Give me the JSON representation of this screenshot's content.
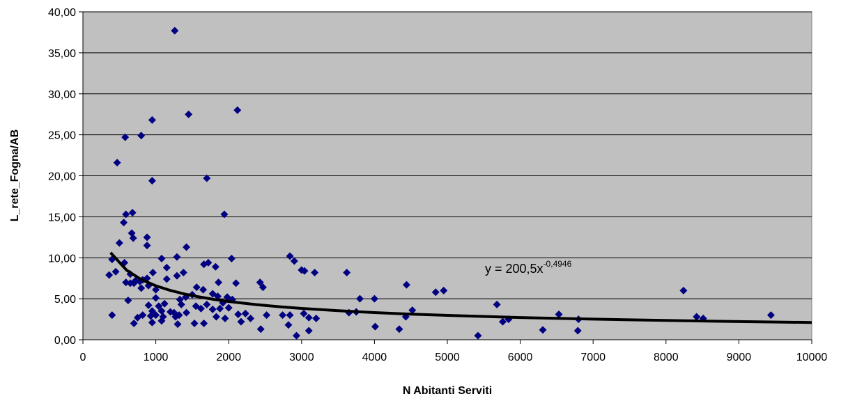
{
  "chart_data": {
    "type": "scatter",
    "xlabel": "N Abitanti Serviti",
    "ylabel": "L_rete_Fogna/AB",
    "xlim": [
      0,
      10000
    ],
    "ylim": [
      0,
      40
    ],
    "xticks": [
      0,
      1000,
      2000,
      3000,
      4000,
      5000,
      6000,
      7000,
      8000,
      9000,
      10000
    ],
    "xtick_labels": [
      "0",
      "1000",
      "2000",
      "3000",
      "4000",
      "5000",
      "6000",
      "7000",
      "8000",
      "9000",
      "10000"
    ],
    "yticks": [
      0,
      5,
      10,
      15,
      20,
      25,
      30,
      35,
      40
    ],
    "ytick_labels": [
      "0,00",
      "5,00",
      "10,00",
      "15,00",
      "20,00",
      "25,00",
      "30,00",
      "35,00",
      "40,00"
    ],
    "grid": "horizontal",
    "plot_background": "#c0c0c0",
    "marker_color": "#000080",
    "trend_color": "#000000",
    "trendline": {
      "type": "power",
      "a": 200.5,
      "b": -0.4946,
      "x_range": [
        380,
        10000
      ],
      "label_prefix": "y = 200,5x",
      "label_exponent": "-0,4946"
    },
    "points": [
      [
        1260,
        37.7
      ],
      [
        2120,
        28.0
      ],
      [
        1450,
        27.5
      ],
      [
        950,
        26.8
      ],
      [
        580,
        24.7
      ],
      [
        800,
        24.9
      ],
      [
        470,
        21.6
      ],
      [
        1700,
        19.7
      ],
      [
        950,
        19.4
      ],
      [
        680,
        15.5
      ],
      [
        590,
        15.3
      ],
      [
        1940,
        15.3
      ],
      [
        560,
        14.3
      ],
      [
        670,
        13.0
      ],
      [
        690,
        12.4
      ],
      [
        880,
        12.5
      ],
      [
        500,
        11.8
      ],
      [
        880,
        11.5
      ],
      [
        1420,
        11.3
      ],
      [
        2840,
        10.2
      ],
      [
        2040,
        9.9
      ],
      [
        400,
        9.8
      ],
      [
        1080,
        9.9
      ],
      [
        1290,
        10.1
      ],
      [
        2900,
        9.6
      ],
      [
        570,
        9.4
      ],
      [
        1660,
        9.2
      ],
      [
        1720,
        9.4
      ],
      [
        1820,
        8.9
      ],
      [
        1150,
        8.8
      ],
      [
        3000,
        8.5
      ],
      [
        3040,
        8.4
      ],
      [
        3180,
        8.2
      ],
      [
        3620,
        8.2
      ],
      [
        960,
        8.2
      ],
      [
        1380,
        8.2
      ],
      [
        650,
        8.0
      ],
      [
        360,
        7.9
      ],
      [
        450,
        8.3
      ],
      [
        1290,
        7.8
      ],
      [
        1860,
        7.0
      ],
      [
        1150,
        7.4
      ],
      [
        720,
        7.2
      ],
      [
        780,
        7.1
      ],
      [
        820,
        7.3
      ],
      [
        880,
        7.5
      ],
      [
        590,
        7.0
      ],
      [
        650,
        6.9
      ],
      [
        700,
        6.9
      ],
      [
        2430,
        7.0
      ],
      [
        2470,
        6.4
      ],
      [
        2100,
        6.9
      ],
      [
        4440,
        6.7
      ],
      [
        800,
        6.3
      ],
      [
        900,
        6.6
      ],
      [
        1000,
        6.1
      ],
      [
        1560,
        6.4
      ],
      [
        1650,
        6.1
      ],
      [
        4840,
        5.8
      ],
      [
        4950,
        6.0
      ],
      [
        8240,
        6.0
      ],
      [
        1780,
        5.6
      ],
      [
        1850,
        5.3
      ],
      [
        1980,
        5.2
      ],
      [
        1410,
        5.2
      ],
      [
        1500,
        5.5
      ],
      [
        1120,
        4.4
      ],
      [
        1330,
        4.9
      ],
      [
        1000,
        5.1
      ],
      [
        620,
        4.8
      ],
      [
        3800,
        5.0
      ],
      [
        4000,
        5.0
      ],
      [
        2050,
        4.9
      ],
      [
        1920,
        4.5
      ],
      [
        1700,
        4.3
      ],
      [
        900,
        4.2
      ],
      [
        1040,
        4.1
      ],
      [
        1350,
        4.3
      ],
      [
        1550,
        4.1
      ],
      [
        2000,
        3.9
      ],
      [
        4520,
        3.6
      ],
      [
        1620,
        3.8
      ],
      [
        1780,
        3.7
      ],
      [
        1880,
        3.8
      ],
      [
        3650,
        3.3
      ],
      [
        3750,
        3.4
      ],
      [
        1250,
        3.3
      ],
      [
        1200,
        3.4
      ],
      [
        1420,
        3.3
      ],
      [
        1080,
        3.5
      ],
      [
        950,
        3.5
      ],
      [
        2130,
        3.1
      ],
      [
        2230,
        3.2
      ],
      [
        2520,
        3.0
      ],
      [
        4430,
        2.8
      ],
      [
        5680,
        4.3
      ],
      [
        6530,
        3.1
      ],
      [
        8420,
        2.8
      ],
      [
        8510,
        2.6
      ],
      [
        9440,
        3.0
      ],
      [
        3030,
        3.2
      ],
      [
        2840,
        3.0
      ],
      [
        2740,
        3.0
      ],
      [
        3100,
        2.7
      ],
      [
        3200,
        2.6
      ],
      [
        2300,
        2.6
      ],
      [
        1950,
        2.6
      ],
      [
        1830,
        2.8
      ],
      [
        400,
        3.0
      ],
      [
        750,
        2.7
      ],
      [
        820,
        3.0
      ],
      [
        930,
        2.9
      ],
      [
        1000,
        3.0
      ],
      [
        1100,
        2.8
      ],
      [
        1270,
        2.8
      ],
      [
        1320,
        3.0
      ],
      [
        5760,
        2.2
      ],
      [
        5840,
        2.5
      ],
      [
        6800,
        2.5
      ],
      [
        700,
        2.0
      ],
      [
        950,
        2.1
      ],
      [
        1080,
        2.3
      ],
      [
        1300,
        1.9
      ],
      [
        1530,
        2.0
      ],
      [
        1660,
        2.0
      ],
      [
        2170,
        2.2
      ],
      [
        4010,
        1.6
      ],
      [
        2820,
        1.8
      ],
      [
        2440,
        1.3
      ],
      [
        3100,
        1.1
      ],
      [
        4340,
        1.3
      ],
      [
        6310,
        1.2
      ],
      [
        6790,
        1.1
      ],
      [
        2930,
        0.5
      ],
      [
        5420,
        0.5
      ]
    ]
  }
}
